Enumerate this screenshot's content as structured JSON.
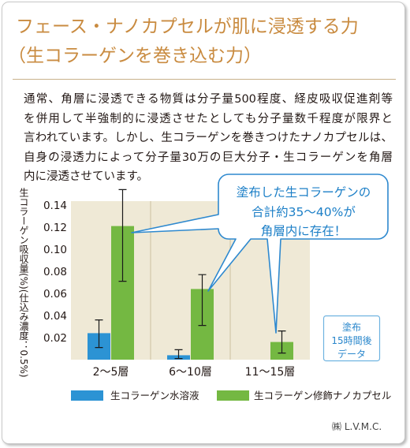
{
  "title": {
    "line1": "フェース・ナノカプセルが肌に浸透する力",
    "line2": "（生コラーゲンを巻き込む力）"
  },
  "description": [
    "通常、角層に浸透できる物質は分子量500程度、経皮吸収促進剤等",
    "を併用して半強制的に浸透させたとしても分子量数千程度が限界と",
    "言われています。しかし、生コラーゲンを巻きつけたナノカプセルは、",
    "自身の浸透力によって分子量30万の巨大分子・生コラーゲンを角層",
    "内に浸透させています。"
  ],
  "chart_data": {
    "type": "bar",
    "categories": [
      "2～5層",
      "6～10層",
      "11～15層"
    ],
    "series": [
      {
        "name": "生コラーゲン水溶液",
        "color": "#2c93d4",
        "values": [
          0.024,
          0.004,
          0
        ],
        "error": [
          [
            0.011,
            0.036
          ],
          [
            0.001,
            0.009
          ],
          null
        ]
      },
      {
        "name": "生コラーゲン修飾ナノカプセル",
        "color": "#74b842",
        "values": [
          0.121,
          0.064,
          0.016
        ],
        "error": [
          [
            0.071,
            0.154
          ],
          [
            0.031,
            0.077
          ],
          [
            0.006,
            0.026
          ]
        ]
      }
    ],
    "ylabel": "生コラーゲン吸収量(%)(仕込み濃度：0.5%)",
    "y_tick_labels": [
      "0.02",
      "0.04",
      "0.06",
      "0.08",
      "0.10",
      "0.12",
      "0.14"
    ],
    "ylim": [
      0,
      0.14
    ],
    "grid": true,
    "legend": "bottom"
  },
  "callout": {
    "lines": [
      "塗布した生コラーゲンの",
      "合計約35～40%が",
      "角層内に存在！"
    ]
  },
  "note_box": {
    "lines": [
      "塗布",
      "15時間後",
      "データ"
    ]
  },
  "footer": {
    "credit": "㈱ L.V.M.C."
  },
  "colors": {
    "title": "#c98b40",
    "divider": "#c9b28a",
    "plot_bg": "#efe9d6",
    "grid": "#cdc1a0",
    "error_bar": "#1a1a1a",
    "callout_border": "#2e89cf",
    "callout_text": "#1c7fc7",
    "note_border": "#6fb3e0",
    "note_text": "#2a87cc"
  }
}
